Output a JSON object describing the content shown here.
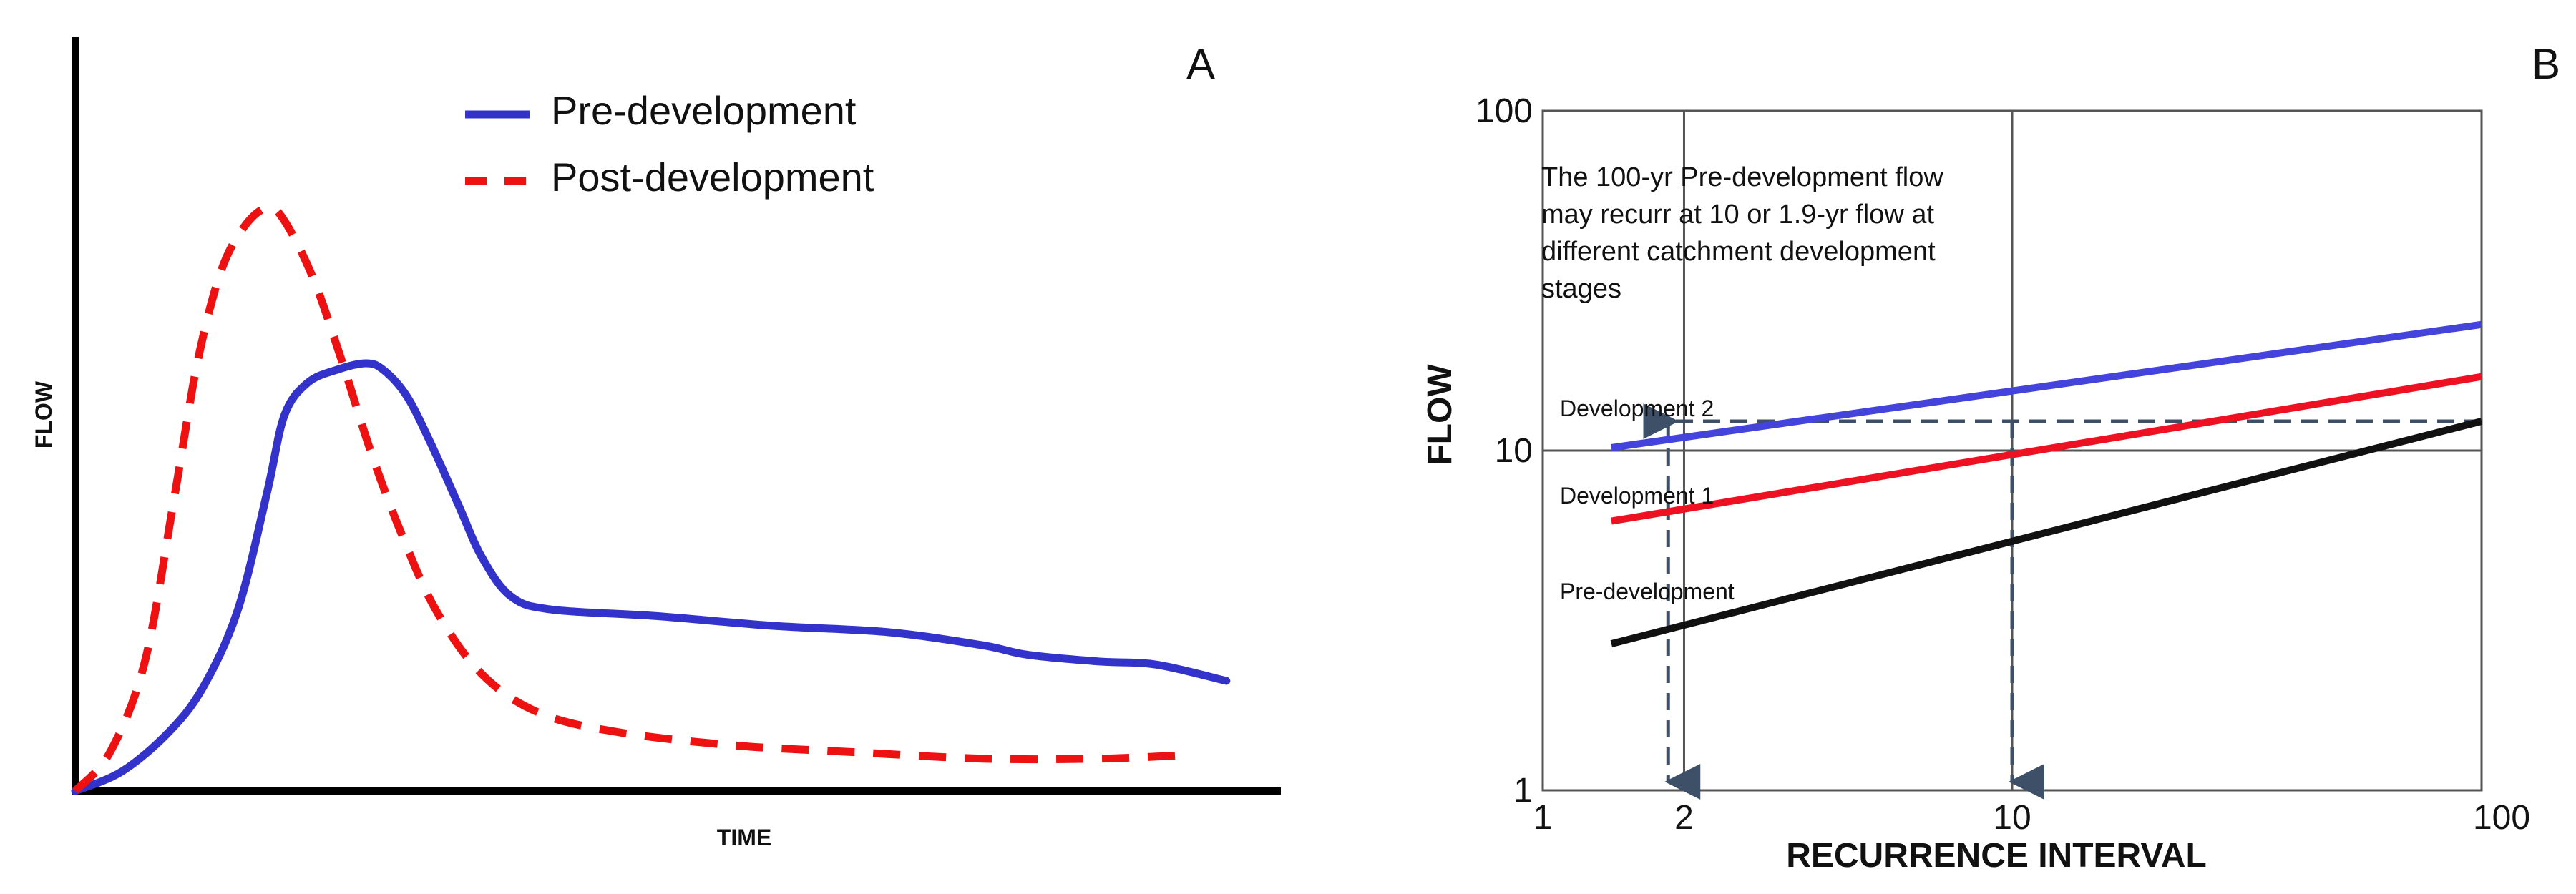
{
  "chart_data": [
    {
      "panel": "A",
      "type": "line",
      "title": "",
      "xlabel": "TIME",
      "ylabel": "FLOW",
      "xlim": [
        0,
        100
      ],
      "ylim": [
        0,
        100
      ],
      "legend_position": "top-center",
      "series": [
        {
          "name": "Pre-development",
          "color": "#3333cc",
          "style": "solid",
          "points": [
            [
              0,
              0
            ],
            [
              4,
              3
            ],
            [
              8,
              9
            ],
            [
              11,
              16
            ],
            [
              14,
              28
            ],
            [
              16.5,
              46
            ],
            [
              18,
              58
            ],
            [
              20,
              63
            ],
            [
              22.5,
              65
            ],
            [
              25,
              66
            ],
            [
              26.5,
              65
            ],
            [
              28.5,
              61
            ],
            [
              30.5,
              54
            ],
            [
              33,
              44
            ],
            [
              35,
              36
            ],
            [
              37.5,
              30
            ],
            [
              41,
              28
            ],
            [
              50,
              27
            ],
            [
              60,
              25.5
            ],
            [
              70,
              24.5
            ],
            [
              78,
              22.5
            ],
            [
              82,
              21
            ],
            [
              88,
              20
            ],
            [
              93,
              19.5
            ],
            [
              99,
              17
            ]
          ]
        },
        {
          "name": "Post-development",
          "color": "#ee1111",
          "style": "dashed",
          "points": [
            [
              0,
              0
            ],
            [
              3,
              6
            ],
            [
              6,
              20
            ],
            [
              8.5,
              45
            ],
            [
              10.5,
              66
            ],
            [
              12.5,
              80
            ],
            [
              14.5,
              87
            ],
            [
              16.5,
              90
            ],
            [
              18,
              88
            ],
            [
              20.5,
              79
            ],
            [
              23,
              66
            ],
            [
              25.5,
              52
            ],
            [
              28,
              40
            ],
            [
              31,
              28
            ],
            [
              35,
              18
            ],
            [
              40,
              12
            ],
            [
              47,
              9
            ],
            [
              57,
              7
            ],
            [
              67,
              6
            ],
            [
              78,
              5
            ],
            [
              88,
              5
            ],
            [
              95,
              5.5
            ]
          ]
        }
      ],
      "panel_label": "A"
    },
    {
      "panel": "B",
      "type": "line",
      "title": "",
      "xlabel": "RECURRENCE INTERVAL",
      "ylabel": "FLOW",
      "xscale": "log",
      "yscale": "log",
      "xlim": [
        1,
        100
      ],
      "ylim": [
        1,
        100
      ],
      "x_tick_labels": [
        "1",
        "2",
        "10",
        "100"
      ],
      "y_tick_labels": [
        "1",
        "10",
        "100"
      ],
      "grid": true,
      "series": [
        {
          "name": "Development 2",
          "color": "#4444dd",
          "x": [
            1.4,
            100
          ],
          "y": [
            10.2,
            23.5
          ]
        },
        {
          "name": "Development 1",
          "color": "#ee1122",
          "x": [
            1.4,
            100
          ],
          "y": [
            6.2,
            16.5
          ]
        },
        {
          "name": "Pre-development",
          "color": "#111111",
          "x": [
            1.4,
            100
          ],
          "y": [
            2.7,
            12.2
          ]
        }
      ],
      "reference_lines": [
        {
          "from": [
            100,
            12.2
          ],
          "to": [
            1.85,
            12.2
          ],
          "style": "dashed"
        },
        {
          "from": [
            1.85,
            12.2
          ],
          "to": [
            1.85,
            1
          ],
          "style": "dashed"
        },
        {
          "from": [
            10,
            12.2
          ],
          "to": [
            10,
            1
          ],
          "style": "dashed"
        }
      ],
      "annotation": [
        "The 100-yr Pre-development flow",
        "may recurr at 10 or 1.9-yr flow at",
        "different catchment development",
        "stages"
      ],
      "panel_label": "B"
    }
  ]
}
